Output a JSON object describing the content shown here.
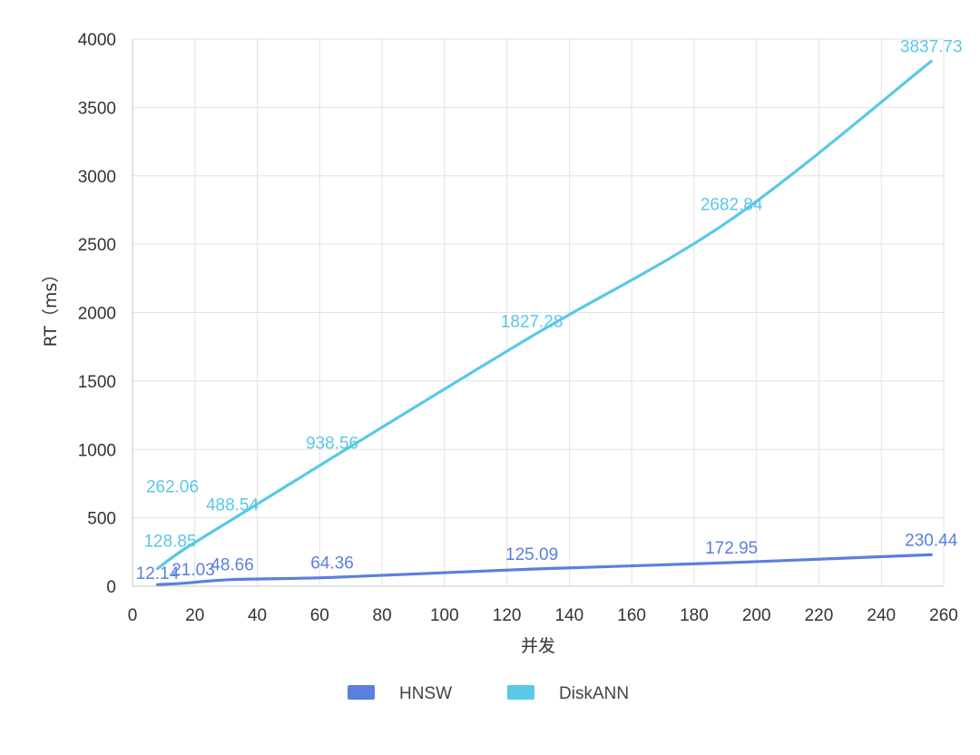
{
  "chart_data": {
    "type": "line",
    "title": "",
    "xlabel": "并发",
    "ylabel": "RT（ms）",
    "xlim": [
      0,
      260
    ],
    "ylim": [
      0,
      4000
    ],
    "x_ticks": [
      0,
      20,
      40,
      60,
      80,
      100,
      120,
      140,
      160,
      180,
      200,
      220,
      240,
      260
    ],
    "y_ticks": [
      0,
      500,
      1000,
      1500,
      2000,
      2500,
      3000,
      3500,
      4000
    ],
    "grid": true,
    "legend_position": "bottom",
    "x": [
      8,
      16,
      32,
      64,
      128,
      192,
      256
    ],
    "series": [
      {
        "name": "HNSW",
        "color": "#5a7fe0",
        "values": [
          12.14,
          21.03,
          48.66,
          64.36,
          125.09,
          172.95,
          230.44
        ],
        "labels": [
          "12.14",
          "21.03",
          "48.66",
          "64.36",
          "125.09",
          "172.95",
          "230.44"
        ]
      },
      {
        "name": "DiskANN",
        "color": "#5ac8e6",
        "values": [
          128.85,
          262.06,
          488.54,
          938.56,
          1827.28,
          2682.84,
          3837.73
        ],
        "labels": [
          "128.85",
          "262.06",
          "488.54",
          "938.56",
          "1827.28",
          "2682.84",
          "3837.73"
        ]
      }
    ]
  }
}
